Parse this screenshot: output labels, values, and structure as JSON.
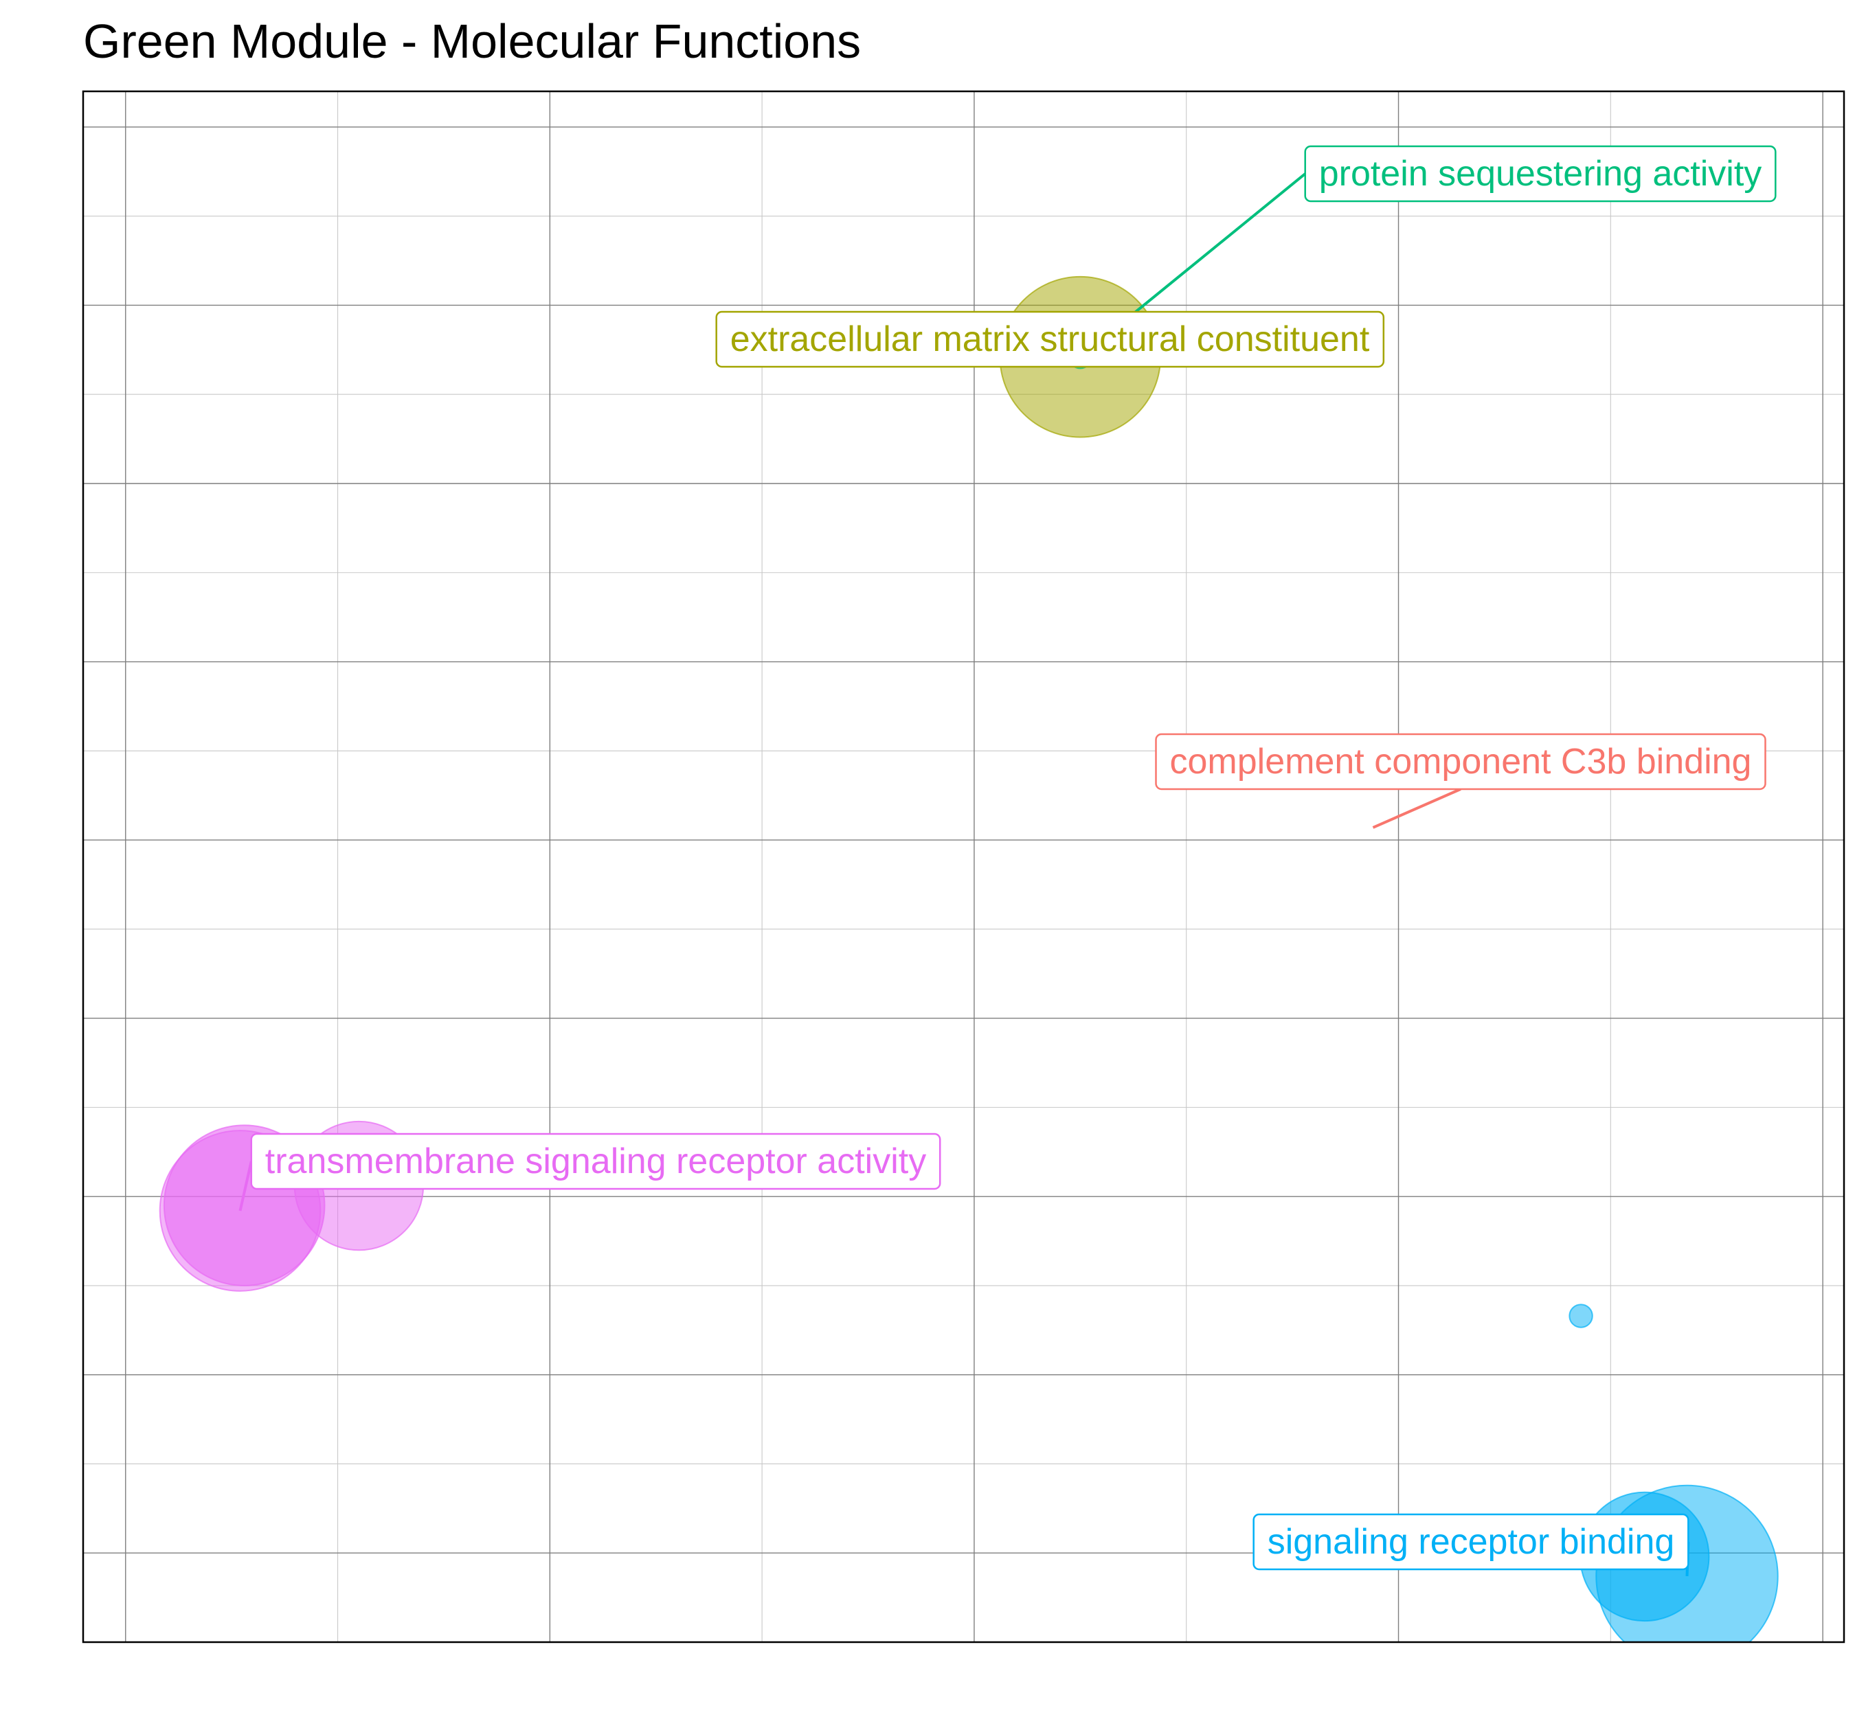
{
  "chart_data": {
    "type": "scatter",
    "title": "Green Module - Molecular Functions",
    "xlabel": "",
    "ylabel": "",
    "grid": true,
    "legend": "none",
    "axis_ticks_labeled": false,
    "points": [
      {
        "term": "",
        "x": 2.25,
        "y": 5.71,
        "size": 14,
        "color": "#A3A500",
        "alpha": 0.5
      },
      {
        "term": "",
        "x": 2.25,
        "y": 5.71,
        "size": 1,
        "color": "#00BF7D",
        "alpha": 0.6
      },
      {
        "term": "",
        "x": 0.55,
        "y": 1.06,
        "size": 11,
        "color": "#E76BF3",
        "alpha": 0.5
      },
      {
        "term": "",
        "x": 0.28,
        "y": 0.95,
        "size": 14,
        "color": "#E76BF3",
        "alpha": 0.6
      },
      {
        "term": "",
        "x": 0.27,
        "y": 0.92,
        "size": 14,
        "color": "#E76BF3",
        "alpha": 0.5
      },
      {
        "term": "",
        "x": 3.43,
        "y": 0.33,
        "size": 1,
        "color": "#00B0F6",
        "alpha": 0.5
      },
      {
        "term": "",
        "x": 3.68,
        "y": -1.13,
        "size": 16,
        "color": "#00B0F6",
        "alpha": 0.5
      },
      {
        "term": "",
        "x": 3.58,
        "y": -1.02,
        "size": 11,
        "color": "#00B0F6",
        "alpha": 0.6
      }
    ],
    "labels": [
      {
        "text": "protein sequestering activity",
        "color": "#00BF7D",
        "x": 2.25,
        "y": 5.71
      },
      {
        "text": "extracellular matrix structural constituent",
        "color": "#A3A500",
        "x": 2.25,
        "y": 5.71
      },
      {
        "text": "complement component C3b binding",
        "color": "#F8766D",
        "x": 2.94,
        "y": 3.07
      },
      {
        "text": "transmembrane signaling receptor activity",
        "color": "#E76BF3",
        "x": 0.27,
        "y": 0.92
      },
      {
        "text": "signaling receptor binding",
        "color": "#00B0F6",
        "x": 3.68,
        "y": -1.13
      }
    ],
    "xlim": [
      -0.1,
      4.05
    ],
    "ylim": [
      -1.5,
      7.2
    ]
  }
}
